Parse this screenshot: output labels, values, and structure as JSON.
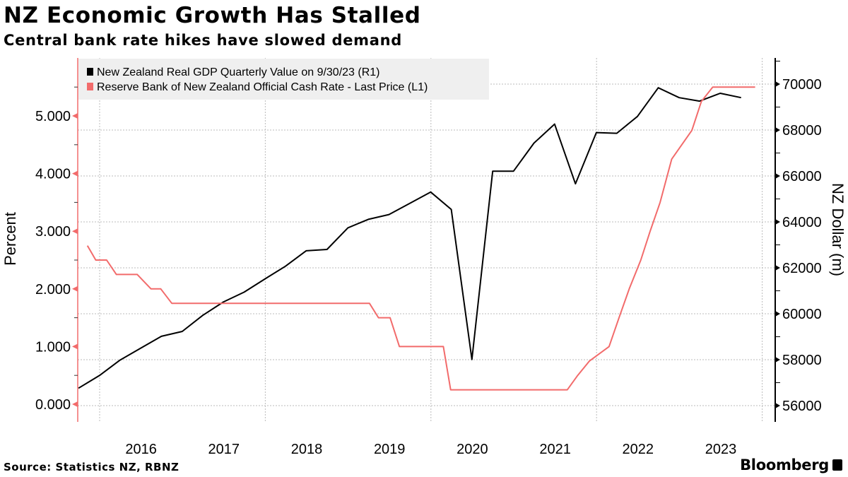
{
  "chart_data": {
    "type": "line",
    "title": "NZ Economic Growth Has Stalled",
    "subtitle": "Central bank rate hikes have slowed demand",
    "source": "Source: Statistics NZ, RBNZ",
    "brand": "Bloomberg",
    "x_ticks": [
      "2016",
      "2017",
      "2018",
      "2019",
      "2020",
      "2021",
      "2022",
      "2023"
    ],
    "left_axis": {
      "label": "Percent",
      "ylim": [
        0,
        5.5
      ],
      "ticks": [
        "0.000",
        "1.000",
        "2.000",
        "3.000",
        "4.000",
        "5.000"
      ],
      "color": "#f26b6b"
    },
    "right_axis": {
      "label": "NZ Dollar (m)",
      "ylim": [
        56000,
        70500
      ],
      "ticks": [
        "56000",
        "58000",
        "60000",
        "62000",
        "64000",
        "66000",
        "68000",
        "70000"
      ]
    },
    "grid": true,
    "legend_position": "top-left",
    "series": [
      {
        "name": "New Zealand Real GDP Quarterly Value on 9/30/23 (R1)",
        "axis": "right",
        "color": "#000000",
        "points": [
          [
            "2015-09-30",
            56760
          ],
          [
            "2015-12-31",
            57310
          ],
          [
            "2016-03-31",
            57980
          ],
          [
            "2016-06-30",
            58500
          ],
          [
            "2016-09-30",
            59020
          ],
          [
            "2016-12-31",
            59230
          ],
          [
            "2017-03-31",
            59930
          ],
          [
            "2017-06-30",
            60510
          ],
          [
            "2017-09-30",
            60940
          ],
          [
            "2017-12-31",
            61520
          ],
          [
            "2018-03-31",
            62070
          ],
          [
            "2018-06-30",
            62740
          ],
          [
            "2018-09-30",
            62800
          ],
          [
            "2018-12-31",
            63740
          ],
          [
            "2019-03-31",
            64110
          ],
          [
            "2019-06-30",
            64320
          ],
          [
            "2019-09-30",
            64810
          ],
          [
            "2019-12-31",
            65300
          ],
          [
            "2020-03-31",
            64540
          ],
          [
            "2020-06-30",
            58010
          ],
          [
            "2020-09-30",
            66210
          ],
          [
            "2020-12-31",
            66210
          ],
          [
            "2021-03-31",
            67430
          ],
          [
            "2021-06-30",
            68260
          ],
          [
            "2021-09-30",
            65660
          ],
          [
            "2021-12-31",
            67890
          ],
          [
            "2022-03-31",
            67860
          ],
          [
            "2022-06-30",
            68590
          ],
          [
            "2022-09-30",
            69840
          ],
          [
            "2022-12-31",
            69410
          ],
          [
            "2023-03-31",
            69260
          ],
          [
            "2023-06-30",
            69600
          ],
          [
            "2023-09-30",
            69410
          ]
        ]
      },
      {
        "name": "Reserve Bank of New Zealand Official Cash Rate - Last Price (L1)",
        "axis": "left",
        "color": "#f26b6b",
        "points": [
          [
            "2015-11-08",
            2.75
          ],
          [
            "2015-12-15",
            2.5
          ],
          [
            "2016-02-01",
            2.5
          ],
          [
            "2016-03-15",
            2.25
          ],
          [
            "2016-06-15",
            2.25
          ],
          [
            "2016-08-15",
            2.0
          ],
          [
            "2016-09-27",
            2.0
          ],
          [
            "2016-11-15",
            1.75
          ],
          [
            "2019-04-05",
            1.75
          ],
          [
            "2019-05-15",
            1.5
          ],
          [
            "2019-07-05",
            1.5
          ],
          [
            "2019-08-15",
            1.0
          ],
          [
            "2020-02-25",
            1.0
          ],
          [
            "2020-03-28",
            0.25
          ],
          [
            "2021-08-25",
            0.25
          ],
          [
            "2021-10-10",
            0.5
          ],
          [
            "2021-12-01",
            0.75
          ],
          [
            "2022-02-25",
            1.0
          ],
          [
            "2022-04-10",
            1.5
          ],
          [
            "2022-05-25",
            2.0
          ],
          [
            "2022-07-15",
            2.5
          ],
          [
            "2022-08-25",
            3.0
          ],
          [
            "2022-10-08",
            3.5
          ],
          [
            "2022-11-28",
            4.25
          ],
          [
            "2023-02-25",
            4.75
          ],
          [
            "2023-04-08",
            5.25
          ],
          [
            "2023-05-28",
            5.5
          ],
          [
            "2023-12-01",
            5.5
          ]
        ]
      }
    ]
  }
}
